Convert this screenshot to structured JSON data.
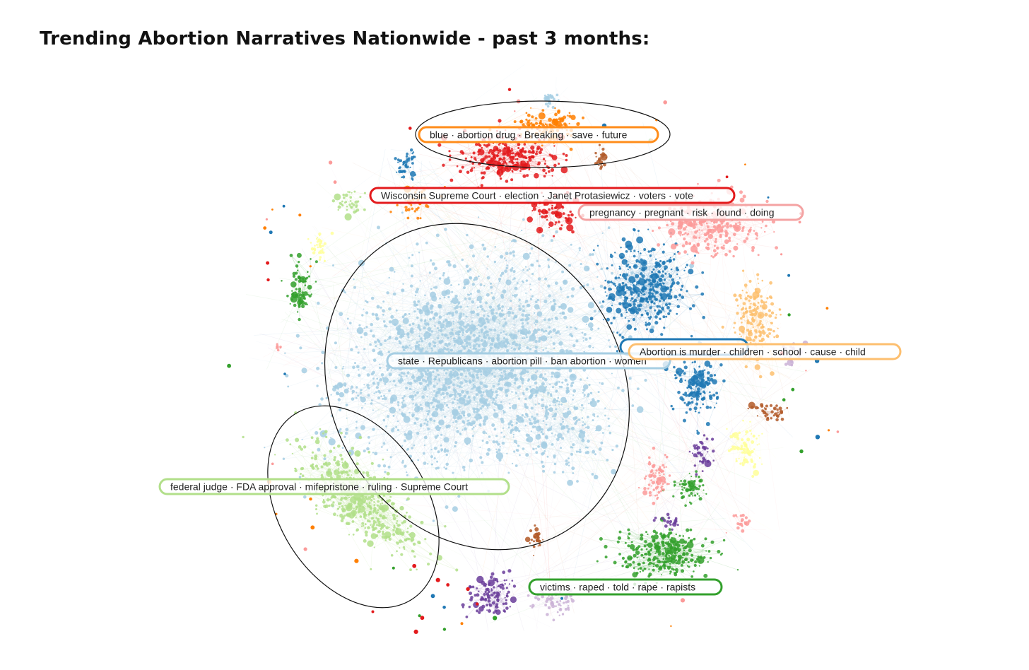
{
  "title": "Trending Abortion Narratives Nationwide - past 3 months:",
  "clusters": [
    {
      "id": "blue-drug",
      "label": "blue · abortion drug · Breaking · save · future",
      "color": "#ff8c1a",
      "highlighted": true
    },
    {
      "id": "wisconsin",
      "label": "Wisconsin Supreme Court · election · Janet Protasiewicz · voters · vote",
      "color": "#e31a1c",
      "highlighted": false
    },
    {
      "id": "pregnancy",
      "label": "pregnancy · pregnant · risk · found · doing",
      "color": "#f4a3a3",
      "highlighted": false
    },
    {
      "id": "state",
      "label": "state · Republicans · abortion pill · ban abortion · women",
      "color": "#a6cee3",
      "highlighted": true
    },
    {
      "id": "murder",
      "label": "Abortion is murder · children · school · cause · child",
      "color": "#fdbf6f",
      "highlighted": false
    },
    {
      "id": "federal",
      "label": "federal judge · FDA approval · mifepristone · ruling · Supreme Court",
      "color": "#b2df8a",
      "highlighted": true
    },
    {
      "id": "victims",
      "label": "victims · raped · told · rape · rapists",
      "color": "#33a02c",
      "highlighted": false
    }
  ],
  "palette": {
    "light_blue": "#a6cee3",
    "dark_blue": "#1f78b4",
    "light_green": "#b2df8a",
    "dark_green": "#33a02c",
    "pink": "#fb9a99",
    "red": "#e31a1c",
    "light_orange": "#fdbf6f",
    "orange": "#ff7f00",
    "lavender": "#cab2d6",
    "purple": "#6a3d9a",
    "yellow": "#ffff99",
    "brown": "#b15928"
  }
}
